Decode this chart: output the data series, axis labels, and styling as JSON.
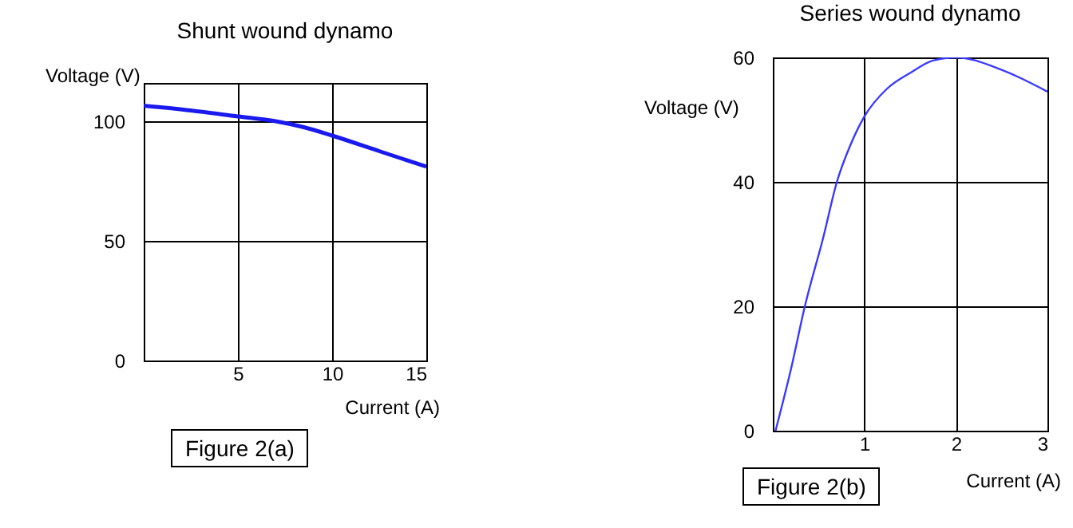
{
  "chart_data": [
    {
      "type": "line",
      "title": "Shunt wound dynamo",
      "xlabel": "Current (A)",
      "ylabel": "Voltage (V)",
      "annotations": [
        "Figure 2(a)"
      ],
      "color": "#1a1aee",
      "grid": true,
      "x": [
        0,
        2.5,
        5,
        7,
        8.5,
        10,
        12.5,
        15
      ],
      "values": [
        106.5,
        104.5,
        102,
        100,
        97.5,
        94,
        87.5,
        81
      ],
      "xlim": [
        0,
        15
      ],
      "xticks": [
        5,
        10,
        15
      ],
      "ylim": [
        0,
        116
      ],
      "yticks": [
        0,
        50,
        100
      ]
    },
    {
      "type": "line",
      "title": "Series wound dynamo",
      "xlabel": "Current (A)",
      "ylabel": "Voltage (V)",
      "annotations": [
        "Figure 2(b)"
      ],
      "color": "#3a3aff",
      "grid": true,
      "x": [
        0.03,
        0.2,
        0.35,
        0.55,
        0.7,
        0.85,
        1,
        1.25,
        1.5,
        1.75,
        2,
        2.5,
        3
      ],
      "values": [
        0,
        10,
        20,
        31,
        40,
        46,
        50.5,
        55,
        57.5,
        59.5,
        60,
        58,
        54.5
      ],
      "xlim": [
        0,
        3
      ],
      "xticks": [
        1,
        2,
        3
      ],
      "ylim": [
        0,
        60
      ],
      "yticks": [
        0,
        20,
        40,
        60
      ]
    }
  ]
}
